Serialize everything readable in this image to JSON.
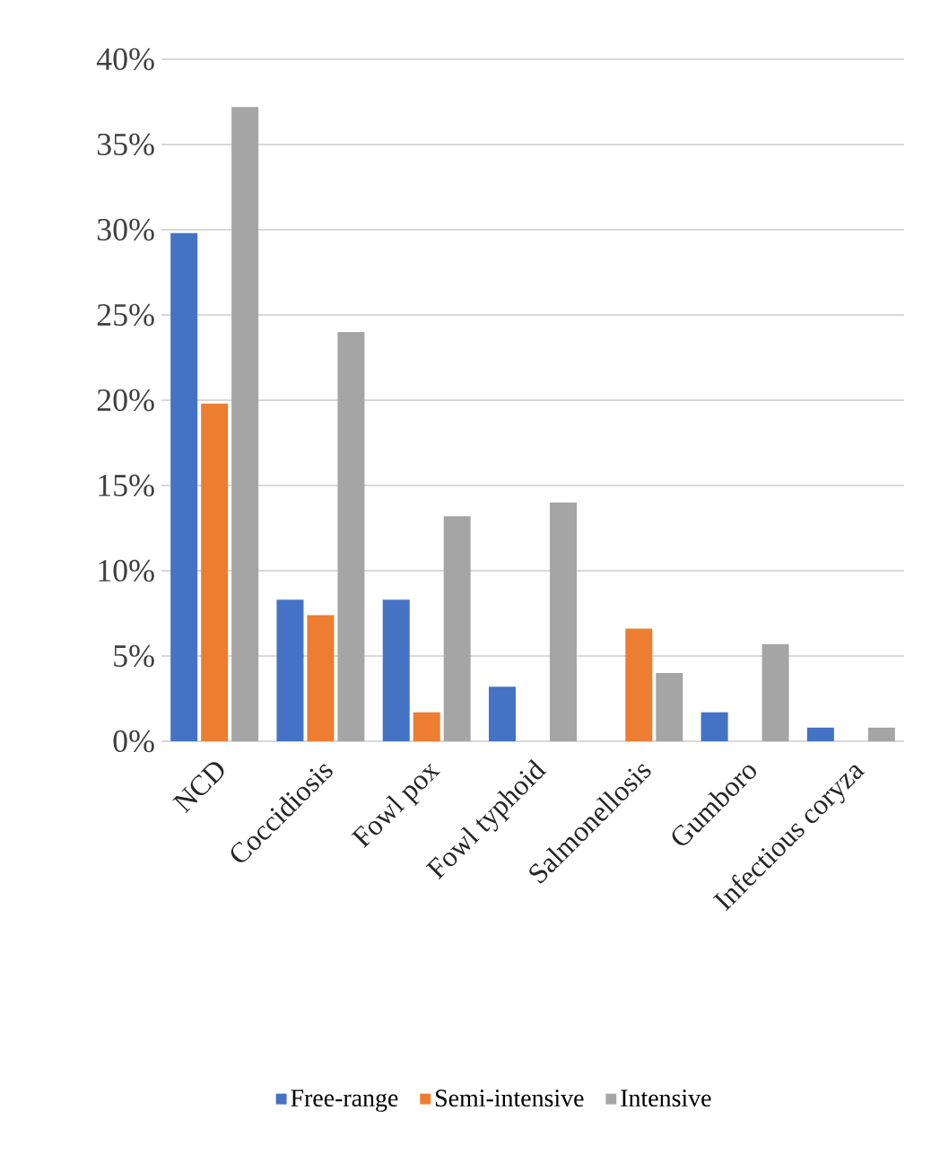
{
  "chart_data": {
    "type": "bar",
    "categories": [
      "NCD",
      "Coccidiosis",
      "Fowl pox",
      "Fowl typhoid",
      "Salmonellosis",
      "Gumboro",
      "Infectious coryza"
    ],
    "series": [
      {
        "name": "Free-range",
        "color": "#4472c4",
        "values": [
          29.8,
          8.3,
          8.3,
          3.2,
          0,
          1.7,
          0.8
        ]
      },
      {
        "name": "Semi-intensive",
        "color": "#ed7d31",
        "values": [
          19.8,
          7.4,
          1.7,
          0,
          6.6,
          0,
          0
        ]
      },
      {
        "name": "Intensive",
        "color": "#a5a5a5",
        "values": [
          37.2,
          24.0,
          13.2,
          14.0,
          4.0,
          5.7,
          0.8
        ]
      }
    ],
    "ylim": [
      0,
      40
    ],
    "yticks": [
      {
        "value": 0,
        "label": "0%"
      },
      {
        "value": 5,
        "label": "5%"
      },
      {
        "value": 10,
        "label": "10%"
      },
      {
        "value": 15,
        "label": "15%"
      },
      {
        "value": 20,
        "label": "20%"
      },
      {
        "value": 25,
        "label": "25%"
      },
      {
        "value": 30,
        "label": "30%"
      },
      {
        "value": 35,
        "label": "35%"
      },
      {
        "value": 40,
        "label": "40%"
      }
    ],
    "grid": "y",
    "legend": "bottom"
  }
}
